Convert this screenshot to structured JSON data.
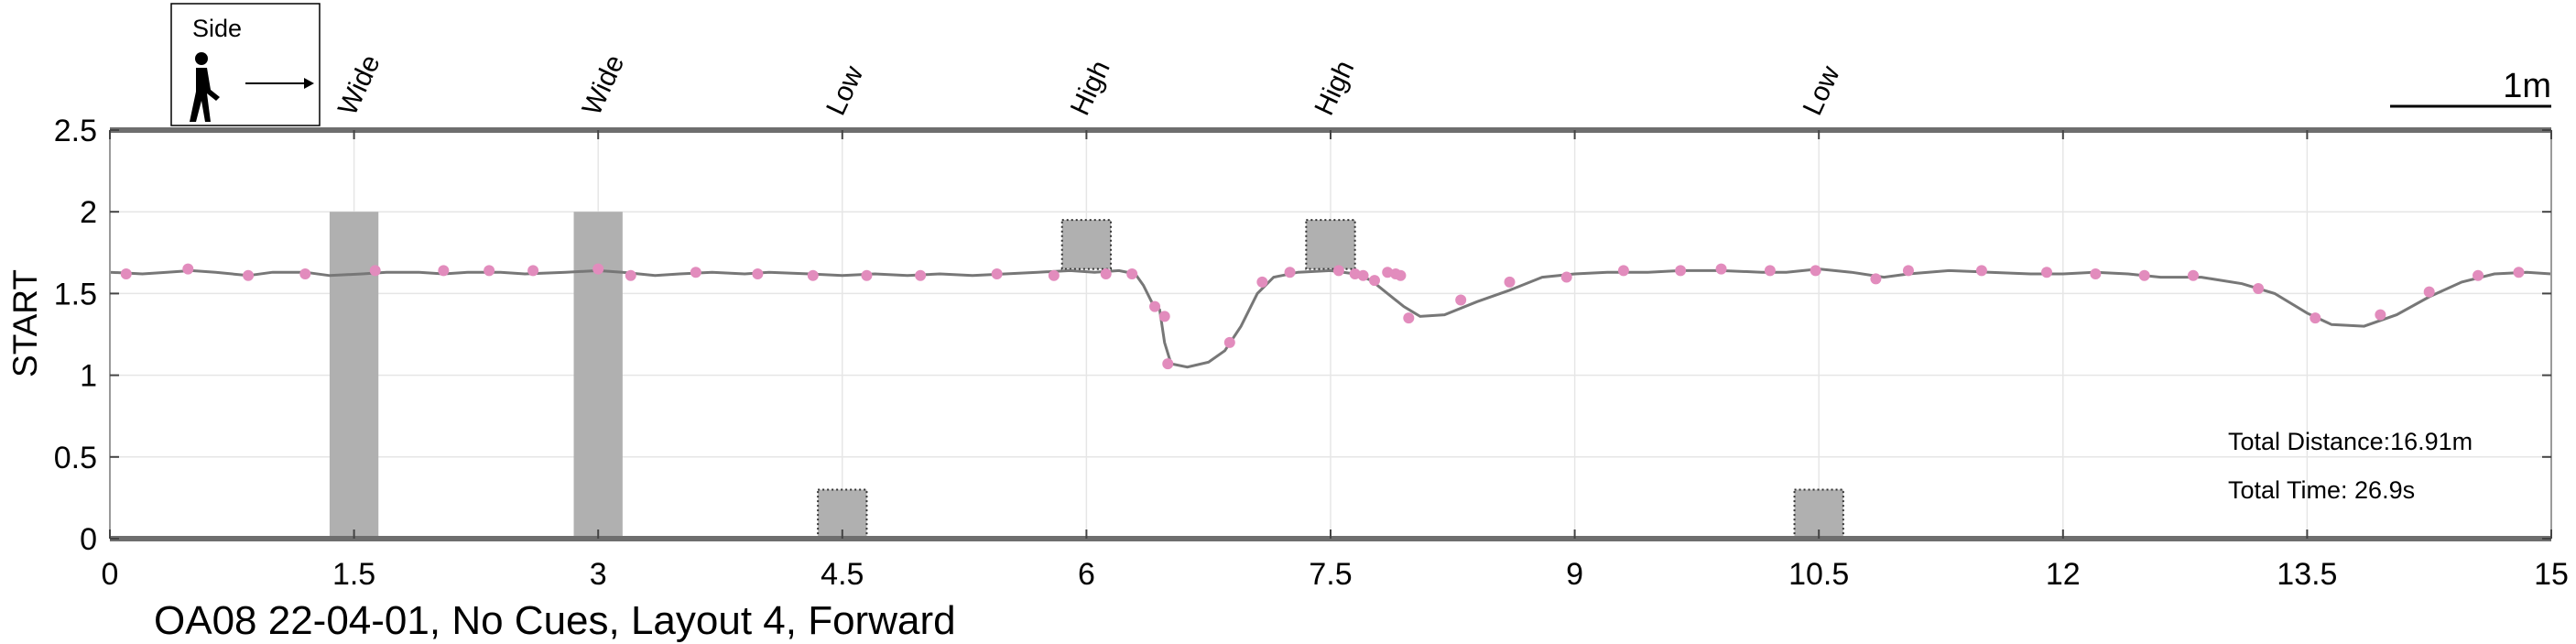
{
  "chart_data": {
    "type": "line",
    "title": "OA08 22-04-01, No Cues, Layout 4, Forward",
    "ylabel": "START",
    "xlim": [
      0,
      15
    ],
    "ylim": [
      0,
      2.5
    ],
    "grid": true,
    "xticks": [
      0,
      1.5,
      3,
      4.5,
      6,
      7.5,
      9,
      10.5,
      12,
      13.5,
      15
    ],
    "xtick_labels": [
      "0",
      "1.5",
      "3",
      "4.5",
      "6",
      "7.5",
      "9",
      "10.5",
      "12",
      "13.5",
      "15"
    ],
    "yticks": [
      0,
      0.5,
      1,
      1.5,
      2,
      2.5
    ],
    "ytick_labels": [
      "0",
      "0.5",
      "1",
      "1.5",
      "2",
      "2.5"
    ],
    "series": [
      {
        "color": "#777777",
        "line": [
          [
            0.0,
            1.63
          ],
          [
            0.2,
            1.62
          ],
          [
            0.35,
            1.63
          ],
          [
            0.5,
            1.64
          ],
          [
            0.65,
            1.63
          ],
          [
            0.85,
            1.61
          ],
          [
            1.0,
            1.63
          ],
          [
            1.2,
            1.63
          ],
          [
            1.35,
            1.61
          ],
          [
            1.55,
            1.62
          ],
          [
            1.7,
            1.63
          ],
          [
            1.9,
            1.63
          ],
          [
            2.05,
            1.62
          ],
          [
            2.2,
            1.63
          ],
          [
            2.4,
            1.63
          ],
          [
            2.55,
            1.62
          ],
          [
            2.8,
            1.63
          ],
          [
            3.0,
            1.64
          ],
          [
            3.15,
            1.63
          ],
          [
            3.35,
            1.61
          ],
          [
            3.5,
            1.62
          ],
          [
            3.7,
            1.63
          ],
          [
            3.9,
            1.62
          ],
          [
            4.05,
            1.63
          ],
          [
            4.3,
            1.62
          ],
          [
            4.5,
            1.61
          ],
          [
            4.7,
            1.62
          ],
          [
            4.9,
            1.61
          ],
          [
            5.1,
            1.62
          ],
          [
            5.3,
            1.61
          ],
          [
            5.5,
            1.62
          ],
          [
            5.7,
            1.63
          ],
          [
            5.9,
            1.64
          ],
          [
            6.05,
            1.63
          ],
          [
            6.2,
            1.64
          ],
          [
            6.3,
            1.62
          ],
          [
            6.35,
            1.55
          ],
          [
            6.4,
            1.45
          ],
          [
            6.45,
            1.4
          ],
          [
            6.48,
            1.2
          ],
          [
            6.52,
            1.07
          ],
          [
            6.62,
            1.05
          ],
          [
            6.75,
            1.08
          ],
          [
            6.85,
            1.15
          ],
          [
            6.95,
            1.3
          ],
          [
            7.05,
            1.5
          ],
          [
            7.15,
            1.6
          ],
          [
            7.3,
            1.63
          ],
          [
            7.5,
            1.64
          ],
          [
            7.65,
            1.62
          ],
          [
            7.75,
            1.58
          ],
          [
            7.85,
            1.5
          ],
          [
            7.95,
            1.42
          ],
          [
            8.05,
            1.36
          ],
          [
            8.2,
            1.37
          ],
          [
            8.4,
            1.45
          ],
          [
            8.6,
            1.52
          ],
          [
            8.8,
            1.6
          ],
          [
            9.0,
            1.62
          ],
          [
            9.2,
            1.63
          ],
          [
            9.45,
            1.63
          ],
          [
            9.65,
            1.64
          ],
          [
            9.9,
            1.64
          ],
          [
            10.15,
            1.63
          ],
          [
            10.3,
            1.63
          ],
          [
            10.5,
            1.65
          ],
          [
            10.7,
            1.63
          ],
          [
            10.9,
            1.6
          ],
          [
            11.05,
            1.62
          ],
          [
            11.3,
            1.64
          ],
          [
            11.55,
            1.63
          ],
          [
            11.8,
            1.62
          ],
          [
            12.0,
            1.62
          ],
          [
            12.2,
            1.63
          ],
          [
            12.4,
            1.62
          ],
          [
            12.6,
            1.6
          ],
          [
            12.85,
            1.6
          ],
          [
            13.1,
            1.56
          ],
          [
            13.3,
            1.5
          ],
          [
            13.5,
            1.38
          ],
          [
            13.65,
            1.31
          ],
          [
            13.85,
            1.3
          ],
          [
            14.05,
            1.37
          ],
          [
            14.25,
            1.48
          ],
          [
            14.45,
            1.57
          ],
          [
            14.65,
            1.62
          ],
          [
            14.85,
            1.63
          ],
          [
            15.0,
            1.62
          ]
        ],
        "markers": [
          [
            0.1,
            1.62
          ],
          [
            0.48,
            1.65
          ],
          [
            0.85,
            1.61
          ],
          [
            1.2,
            1.62
          ],
          [
            1.63,
            1.64
          ],
          [
            2.05,
            1.64
          ],
          [
            2.33,
            1.64
          ],
          [
            2.6,
            1.64
          ],
          [
            3.0,
            1.65
          ],
          [
            3.2,
            1.61
          ],
          [
            3.6,
            1.63
          ],
          [
            3.98,
            1.62
          ],
          [
            4.32,
            1.61
          ],
          [
            4.65,
            1.61
          ],
          [
            4.98,
            1.61
          ],
          [
            5.45,
            1.62
          ],
          [
            5.8,
            1.61
          ],
          [
            6.12,
            1.62
          ],
          [
            6.28,
            1.62
          ],
          [
            6.42,
            1.42
          ],
          [
            6.48,
            1.36
          ],
          [
            6.5,
            1.07
          ],
          [
            6.88,
            1.2
          ],
          [
            7.08,
            1.57
          ],
          [
            7.25,
            1.63
          ],
          [
            7.55,
            1.64
          ],
          [
            7.65,
            1.62
          ],
          [
            7.7,
            1.61
          ],
          [
            7.77,
            1.58
          ],
          [
            7.85,
            1.63
          ],
          [
            7.9,
            1.62
          ],
          [
            7.93,
            1.61
          ],
          [
            7.98,
            1.35
          ],
          [
            8.3,
            1.46
          ],
          [
            8.6,
            1.57
          ],
          [
            8.95,
            1.6
          ],
          [
            9.3,
            1.64
          ],
          [
            9.65,
            1.64
          ],
          [
            9.9,
            1.65
          ],
          [
            10.2,
            1.64
          ],
          [
            10.48,
            1.64
          ],
          [
            10.85,
            1.59
          ],
          [
            11.05,
            1.64
          ],
          [
            11.5,
            1.64
          ],
          [
            11.9,
            1.63
          ],
          [
            12.2,
            1.62
          ],
          [
            12.5,
            1.61
          ],
          [
            12.8,
            1.61
          ],
          [
            13.2,
            1.53
          ],
          [
            13.55,
            1.35
          ],
          [
            13.95,
            1.37
          ],
          [
            14.25,
            1.51
          ],
          [
            14.55,
            1.61
          ],
          [
            14.8,
            1.63
          ]
        ],
        "marker_color": "#e28cbd"
      }
    ],
    "obstacles": [
      {
        "label": "Wide",
        "x": [
          1.35,
          1.65
        ],
        "y": [
          0,
          2.0
        ],
        "style": "solid"
      },
      {
        "label": "Wide",
        "x": [
          2.85,
          3.15
        ],
        "y": [
          0,
          2.0
        ],
        "style": "solid"
      },
      {
        "label": "Low",
        "x": [
          4.35,
          4.65
        ],
        "y": [
          0,
          0.3
        ],
        "style": "dotted"
      },
      {
        "label": "High",
        "x": [
          5.85,
          6.15
        ],
        "y": [
          1.65,
          1.95
        ],
        "style": "dotted"
      },
      {
        "label": "High",
        "x": [
          7.35,
          7.65
        ],
        "y": [
          1.65,
          1.95
        ],
        "style": "dotted"
      },
      {
        "label": "Low",
        "x": [
          10.35,
          10.65
        ],
        "y": [
          0,
          0.3
        ],
        "style": "dotted"
      }
    ],
    "annotations": {
      "distance": "Total Distance:16.91m",
      "time": "Total Time: 26.9s",
      "scale": "1m"
    },
    "legend": {
      "view": "Side"
    }
  }
}
